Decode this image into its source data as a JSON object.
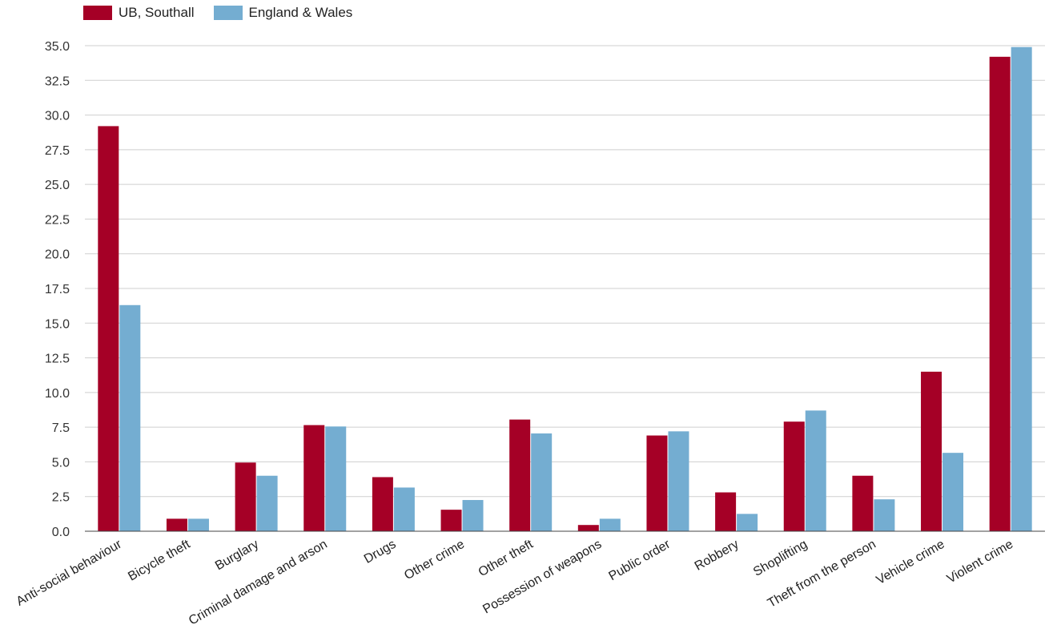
{
  "chart_data": {
    "type": "bar",
    "title": "",
    "xlabel": "",
    "ylabel": "",
    "ylim": [
      0,
      35
    ],
    "yticks": [
      "0.0",
      "2.5",
      "5.0",
      "7.5",
      "10.0",
      "12.5",
      "15.0",
      "17.5",
      "20.0",
      "22.5",
      "25.0",
      "27.5",
      "30.0",
      "32.5",
      "35.0"
    ],
    "grid": true,
    "legend_position": "top-left",
    "categories": [
      "Anti-social behaviour",
      "Bicycle theft",
      "Burglary",
      "Criminal damage and arson",
      "Drugs",
      "Other crime",
      "Other theft",
      "Possession of weapons",
      "Public order",
      "Robbery",
      "Shoplifting",
      "Theft from the person",
      "Vehicle crime",
      "Violent crime"
    ],
    "series": [
      {
        "name": "UB, Southall",
        "color": "#a50026",
        "values": [
          29.2,
          0.9,
          4.95,
          7.65,
          3.9,
          1.55,
          8.05,
          0.45,
          6.9,
          2.8,
          7.9,
          4.0,
          11.5,
          34.2
        ]
      },
      {
        "name": "England & Wales",
        "color": "#74add1",
        "values": [
          16.3,
          0.9,
          4.0,
          7.55,
          3.15,
          2.25,
          7.05,
          0.9,
          7.2,
          1.25,
          8.7,
          2.3,
          5.65,
          34.9
        ]
      }
    ]
  }
}
